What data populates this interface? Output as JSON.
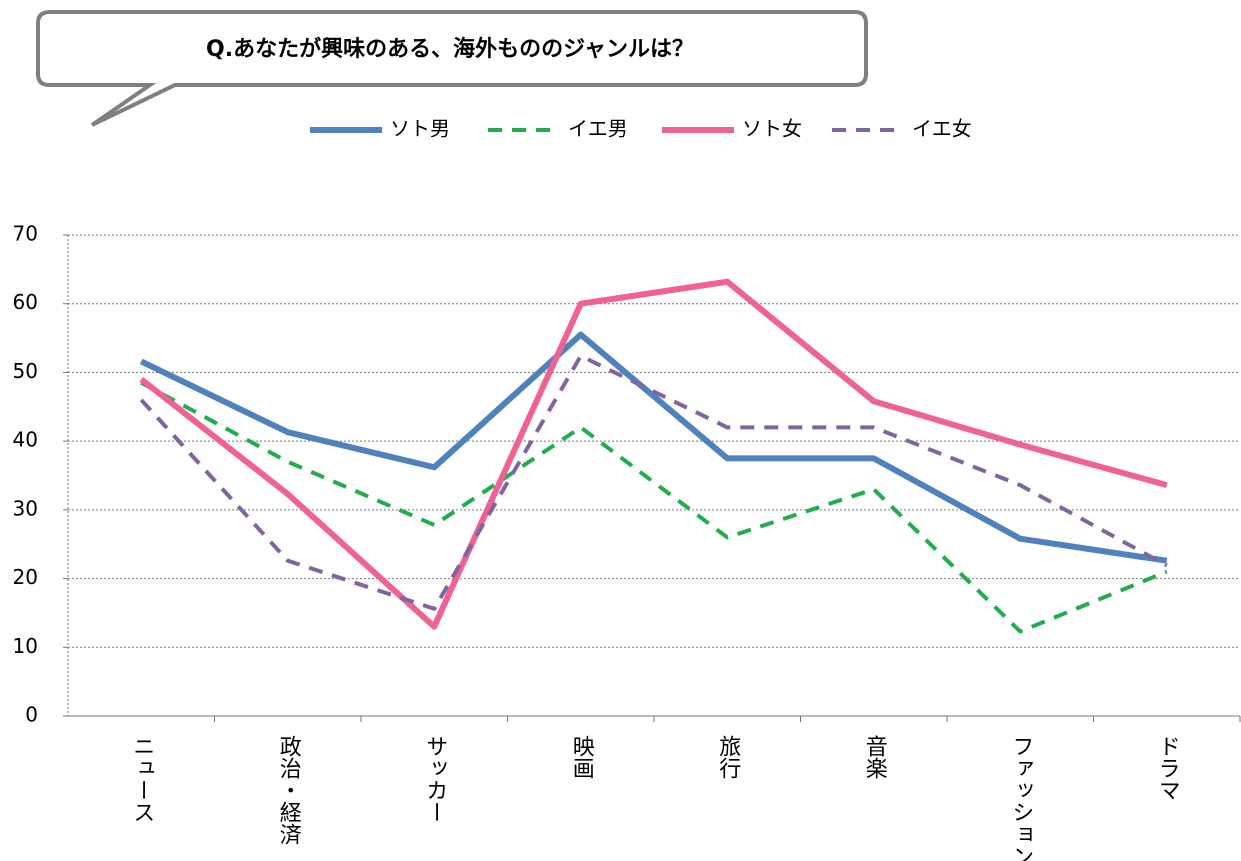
{
  "chart_data": {
    "type": "line",
    "title": "Q.あなたが興味のある、海外もののジャンルは？",
    "categories": [
      "ニュース",
      "政治・経済",
      "サッカー",
      "映画",
      "旅行",
      "音楽",
      "ファッション",
      "ドラマ"
    ],
    "series": [
      {
        "name": "ソト男",
        "color": "#4f81bd",
        "dashed": false,
        "values": [
          51.6,
          41.3,
          36.2,
          55.5,
          37.5,
          37.5,
          25.8,
          22.6
        ]
      },
      {
        "name": "イエ男",
        "color": "#1fae4b",
        "dashed": true,
        "values": [
          48.5,
          37,
          27.8,
          42,
          26,
          33,
          12.3,
          21
        ]
      },
      {
        "name": "ソト女",
        "color": "#f06292",
        "dashed": false,
        "values": [
          49,
          32.3,
          13,
          60,
          63.2,
          45.8,
          39.5,
          33.6
        ]
      },
      {
        "name": "イエ女",
        "color": "#8064a2",
        "dashed": true,
        "values": [
          46,
          22.6,
          15.6,
          52.4,
          42,
          42,
          33.6,
          21.9
        ]
      }
    ],
    "ylim": [
      0,
      70
    ],
    "yticks": [
      0,
      10,
      20,
      30,
      40,
      50,
      60,
      70
    ],
    "grid": true
  }
}
